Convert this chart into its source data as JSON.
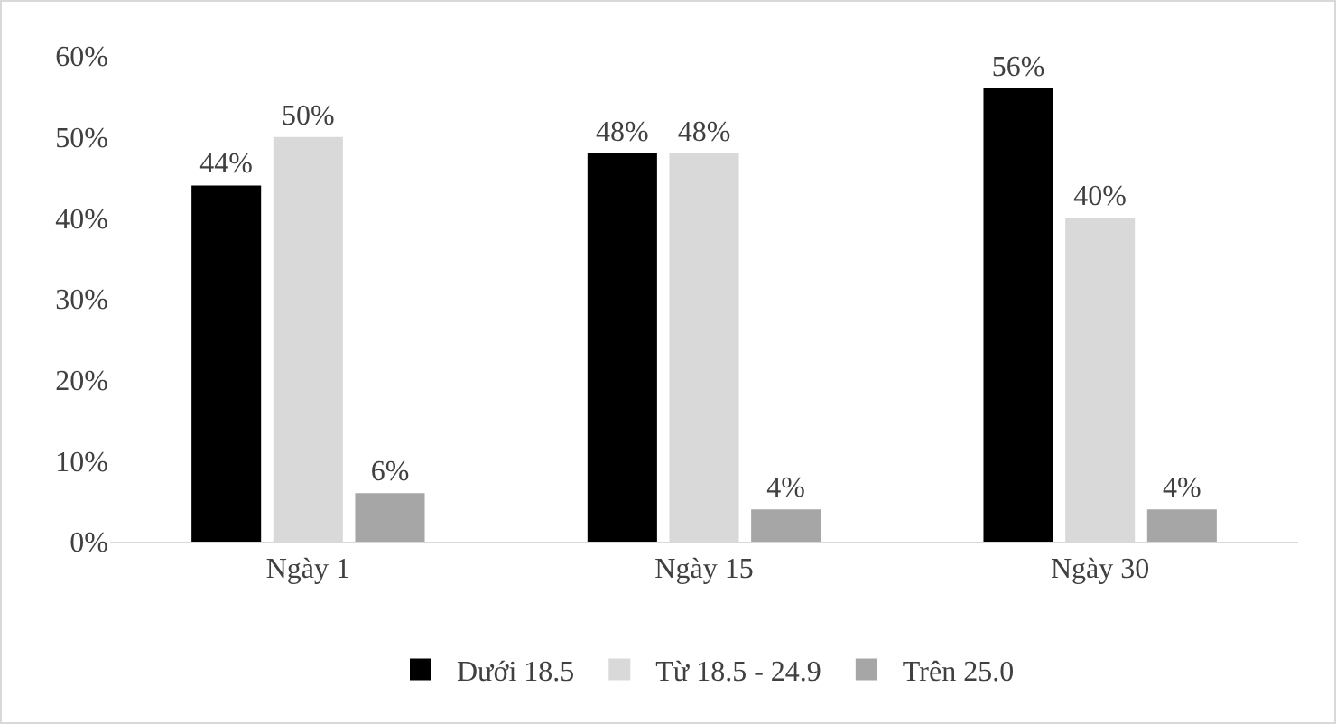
{
  "chart_data": {
    "type": "bar",
    "categories": [
      "Ngày 1",
      "Ngày 15",
      "Ngày 30"
    ],
    "series": [
      {
        "name": "Dưới 18.5",
        "color": "#000000",
        "values": [
          44,
          48,
          56
        ],
        "value_labels": [
          "44%",
          "48%",
          "56%"
        ]
      },
      {
        "name": "Từ 18.5 - 24.9",
        "color": "#d9d9d9",
        "values": [
          50,
          48,
          40
        ],
        "value_labels": [
          "50%",
          "48%",
          "40%"
        ]
      },
      {
        "name": "Trên 25.0",
        "color": "#a6a6a6",
        "values": [
          6,
          4,
          4
        ],
        "value_labels": [
          "6%",
          "4%",
          "4%"
        ]
      }
    ],
    "ylim": [
      0,
      60
    ],
    "yticks": [
      {
        "value": 0,
        "label": "0%"
      },
      {
        "value": 10,
        "label": "10%"
      },
      {
        "value": 20,
        "label": "20%"
      },
      {
        "value": 30,
        "label": "30%"
      },
      {
        "value": 40,
        "label": "40%"
      },
      {
        "value": 50,
        "label": "50%"
      },
      {
        "value": 60,
        "label": "60%"
      }
    ],
    "grid": false,
    "legend": "bottom"
  }
}
